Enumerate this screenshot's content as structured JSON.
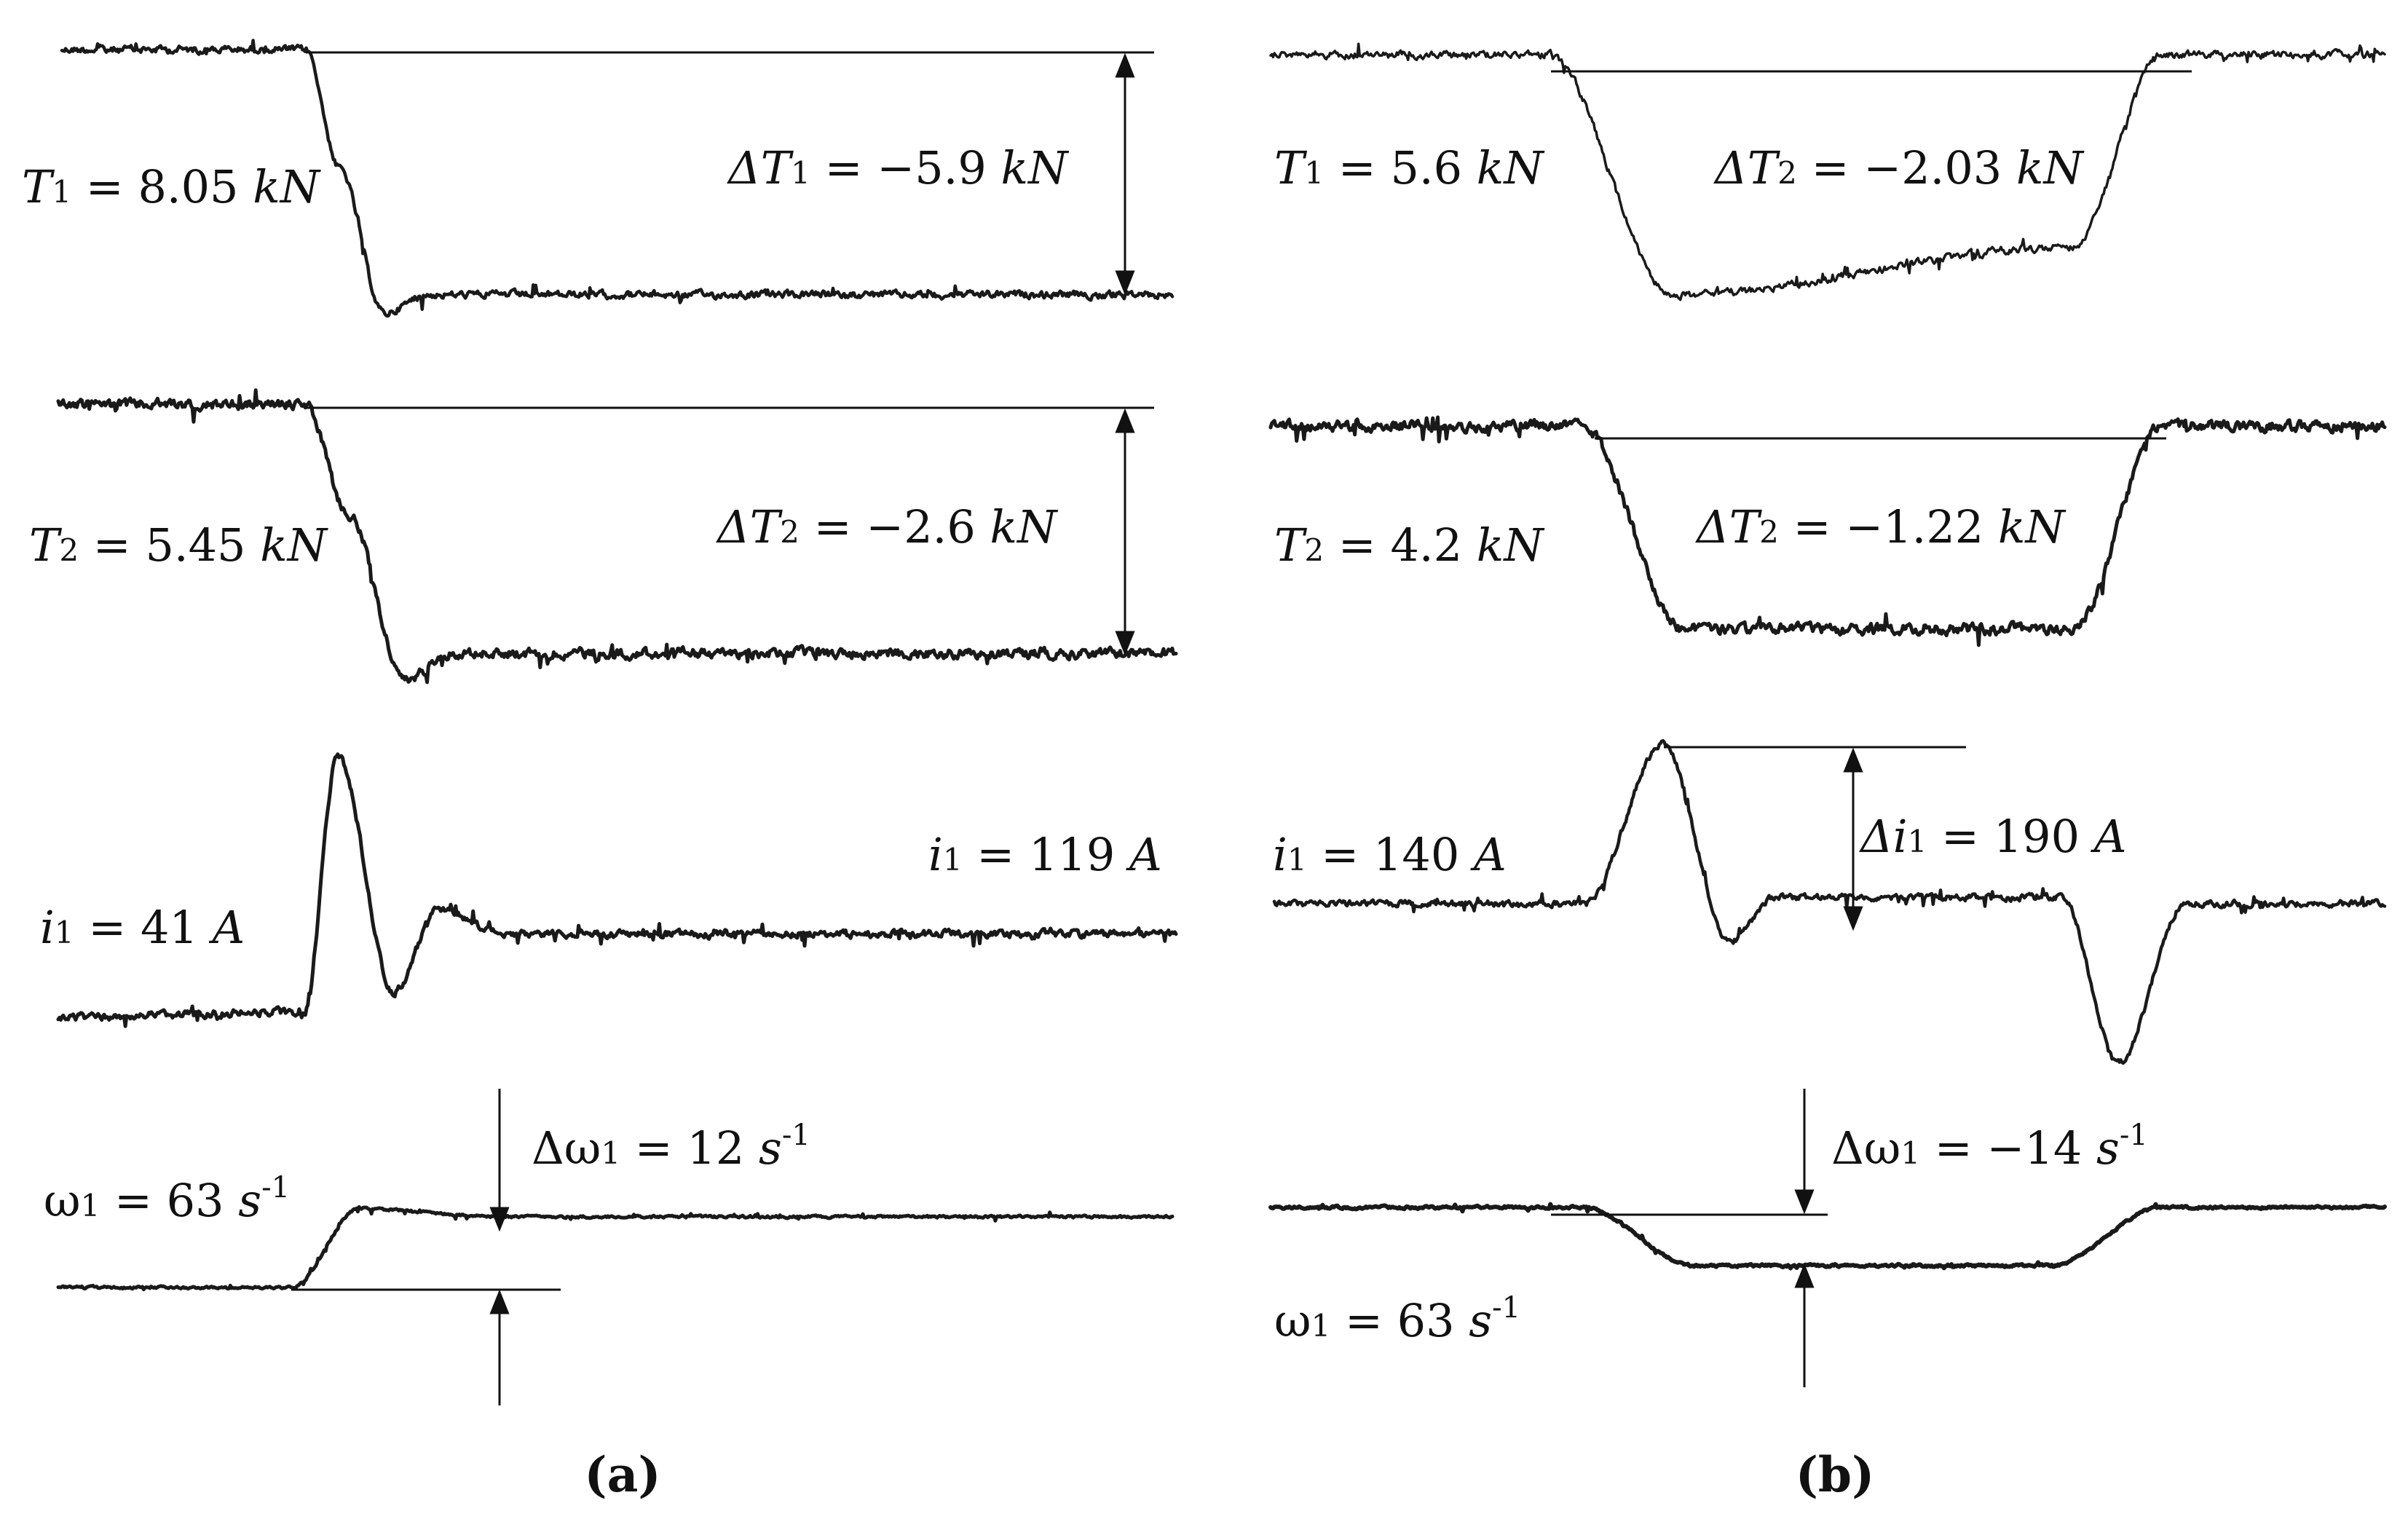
{
  "chart_data": [
    {
      "type": "line",
      "panel": "(a)",
      "traces": [
        {
          "id": "T1",
          "label_prefix": "T",
          "label_sub": "1",
          "label_value": " = 8.05 ",
          "label_unit": "kN",
          "delta_prefix": "ΔT",
          "delta_sub": "1",
          "delta_value": " = −5.9 ",
          "delta_unit": "kN",
          "initial": 8.05,
          "delta": -5.9,
          "unit": "kN",
          "shape": [
            [
              0,
              1
            ],
            [
              0.22,
              1
            ],
            [
              0.25,
              0.55
            ],
            [
              0.29,
              0
            ],
            [
              0.33,
              0.07
            ],
            [
              1,
              0.07
            ]
          ]
        },
        {
          "id": "T2",
          "label_prefix": "T",
          "label_sub": "2",
          "label_value": " = 5.45 ",
          "label_unit": "kN",
          "delta_prefix": "ΔT",
          "delta_sub": "2",
          "delta_value": " = −2.6 ",
          "delta_unit": "kN",
          "initial": 5.45,
          "delta": -2.6,
          "unit": "kN",
          "shape": [
            [
              0,
              1
            ],
            [
              0.22,
              1
            ],
            [
              0.26,
              0.6
            ],
            [
              0.31,
              0
            ],
            [
              0.35,
              0.1
            ],
            [
              1,
              0.1
            ]
          ]
        },
        {
          "id": "i1",
          "label_prefix": "i",
          "label_sub": "1",
          "label_value": " = 41 ",
          "label_unit": "A",
          "end_prefix": "i",
          "end_sub": "1",
          "end_value": " = 119 ",
          "end_unit": "A",
          "initial": 41,
          "final": 119,
          "unit": "A",
          "shape": [
            [
              0,
              0.06
            ],
            [
              0.22,
              0.08
            ],
            [
              0.25,
              1
            ],
            [
              0.3,
              0.15
            ],
            [
              0.34,
              0.45
            ],
            [
              0.4,
              0.36
            ],
            [
              1,
              0.36
            ]
          ]
        },
        {
          "id": "omega1",
          "label_prefix": "ω",
          "label_sub": "1",
          "label_value": " = 63 ",
          "label_unit": "s",
          "label_sup": "-1",
          "delta_prefix": "Δω",
          "delta_sub": "1",
          "delta_value": " = 12 ",
          "delta_unit": "s",
          "delta_sup": "-1",
          "initial": 63,
          "delta": 12,
          "unit": "s^-1",
          "shape": [
            [
              0,
              0
            ],
            [
              0.21,
              0
            ],
            [
              0.27,
              1
            ],
            [
              0.4,
              0.9
            ],
            [
              1,
              0.9
            ]
          ]
        }
      ]
    },
    {
      "type": "line",
      "panel": "(b)",
      "traces": [
        {
          "id": "T1",
          "label_prefix": "T",
          "label_sub": "1",
          "label_value": " = 5.6 ",
          "label_unit": "kN",
          "delta_prefix": "ΔT",
          "delta_sub": "2",
          "delta_value": " = −2.03 ",
          "delta_unit": "kN",
          "initial": 5.6,
          "delta": -2.03,
          "unit": "kN",
          "shape": [
            [
              0,
              1
            ],
            [
              0.25,
              1
            ],
            [
              0.36,
              0
            ],
            [
              0.72,
              0.2
            ],
            [
              0.8,
              1
            ],
            [
              1,
              1
            ]
          ]
        },
        {
          "id": "T2",
          "label_prefix": "T",
          "label_sub": "2",
          "label_value": " = 4.2 ",
          "label_unit": "kN",
          "delta_prefix": "ΔT",
          "delta_sub": "2",
          "delta_value": " = −1.22 ",
          "delta_unit": "kN",
          "initial": 4.2,
          "delta": -1.22,
          "unit": "kN",
          "shape": [
            [
              0,
              1
            ],
            [
              0.28,
              1
            ],
            [
              0.37,
              0.1
            ],
            [
              0.72,
              0.1
            ],
            [
              0.8,
              1
            ],
            [
              1,
              1
            ]
          ]
        },
        {
          "id": "i1",
          "label_prefix": "i",
          "label_sub": "1",
          "label_value": " = 140 ",
          "label_unit": "A",
          "delta_prefix": "Δi",
          "delta_sub": "1",
          "delta_value": " = 190 ",
          "delta_unit": "A",
          "initial": 140,
          "delta": 190,
          "unit": "A",
          "shape": [
            [
              0,
              0.5
            ],
            [
              0.28,
              0.5
            ],
            [
              0.35,
              1
            ],
            [
              0.41,
              0.38
            ],
            [
              0.45,
              0.52
            ],
            [
              0.71,
              0.52
            ],
            [
              0.76,
              0
            ],
            [
              0.82,
              0.5
            ],
            [
              1,
              0.5
            ]
          ]
        },
        {
          "id": "omega1",
          "label_prefix": "ω",
          "label_sub": "1",
          "label_value": " = 63 ",
          "label_unit": "s",
          "label_sup": "-1",
          "delta_prefix": "Δω",
          "delta_sub": "1",
          "delta_value": " = −14 ",
          "delta_unit": "s",
          "delta_sup": "-1",
          "initial": 63,
          "delta": -14,
          "unit": "s^-1",
          "shape": [
            [
              0,
              1
            ],
            [
              0.28,
              1
            ],
            [
              0.38,
              0
            ],
            [
              0.7,
              0
            ],
            [
              0.8,
              1
            ],
            [
              1,
              1
            ]
          ]
        }
      ]
    }
  ],
  "captions": [
    "(a)",
    "(b)"
  ],
  "colors": {
    "trace": "#1a1a1a",
    "trace_light": "#444444",
    "background": "#ffffff"
  }
}
